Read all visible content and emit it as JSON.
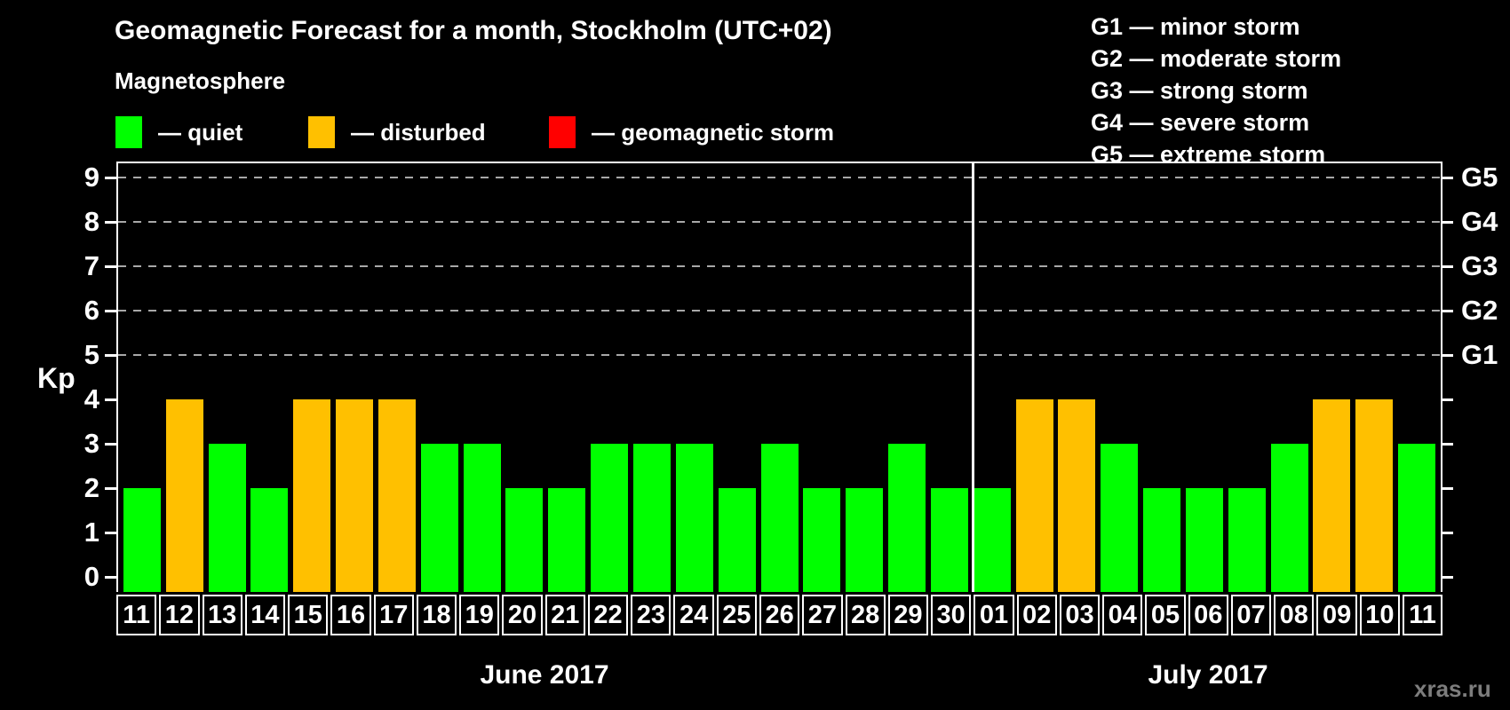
{
  "title": "Geomagnetic Forecast for a month, Stockholm (UTC+02)",
  "subtitle": "Magnetosphere",
  "status_legend": [
    {
      "name": "quiet",
      "label": "— quiet",
      "color": "#00ff00"
    },
    {
      "name": "disturbed",
      "label": "— disturbed",
      "color": "#ffc000"
    },
    {
      "name": "storm",
      "label": "— geomagnetic storm",
      "color": "#ff0000"
    }
  ],
  "g_scale_legend": [
    "G1 — minor storm",
    "G2 — moderate storm",
    "G3 — strong storm",
    "G4 — severe storm",
    "G5 — extreme storm"
  ],
  "watermark": "xras.ru",
  "colors": {
    "background": "#000000",
    "quiet": "#00ff00",
    "disturbed": "#ffc000",
    "storm": "#ff0000",
    "frame": "#ffffff",
    "gridline": "#a8a8a8",
    "watermark": "#7d7d7d"
  },
  "chart_data": {
    "type": "bar",
    "title": "Geomagnetic Forecast for a month, Stockholm (UTC+02)",
    "ylabel": "Kp",
    "ylim": [
      0,
      9
    ],
    "y_ticks": [
      0,
      1,
      2,
      3,
      4,
      5,
      6,
      7,
      8,
      9
    ],
    "gridlines_at": [
      5,
      6,
      7,
      8,
      9
    ],
    "grid_style": "dashed horizontal lines at G-storm levels only",
    "legend_position": "top-left",
    "right_axis_labels": [
      {
        "kp": 5,
        "label": "G1"
      },
      {
        "kp": 6,
        "label": "G2"
      },
      {
        "kp": 7,
        "label": "G3"
      },
      {
        "kp": 8,
        "label": "G4"
      },
      {
        "kp": 9,
        "label": "G5"
      }
    ],
    "categories": [
      "11",
      "12",
      "13",
      "14",
      "15",
      "16",
      "17",
      "18",
      "19",
      "20",
      "21",
      "22",
      "23",
      "24",
      "25",
      "26",
      "27",
      "28",
      "29",
      "30",
      "01",
      "02",
      "03",
      "04",
      "05",
      "06",
      "07",
      "08",
      "09",
      "10",
      "11"
    ],
    "values": [
      2,
      4,
      3,
      2,
      4,
      4,
      4,
      3,
      3,
      2,
      2,
      3,
      3,
      3,
      2,
      3,
      2,
      2,
      3,
      2,
      2,
      4,
      4,
      3,
      2,
      2,
      2,
      3,
      4,
      4,
      3
    ],
    "statuses": [
      "quiet",
      "disturbed",
      "quiet",
      "quiet",
      "disturbed",
      "disturbed",
      "disturbed",
      "quiet",
      "quiet",
      "quiet",
      "quiet",
      "quiet",
      "quiet",
      "quiet",
      "quiet",
      "quiet",
      "quiet",
      "quiet",
      "quiet",
      "quiet",
      "quiet",
      "disturbed",
      "disturbed",
      "quiet",
      "quiet",
      "quiet",
      "quiet",
      "quiet",
      "disturbed",
      "disturbed",
      "quiet"
    ],
    "months": [
      {
        "label": "June 2017",
        "days": [
          {
            "day": "11",
            "kp": 2,
            "status": "quiet"
          },
          {
            "day": "12",
            "kp": 4,
            "status": "disturbed"
          },
          {
            "day": "13",
            "kp": 3,
            "status": "quiet"
          },
          {
            "day": "14",
            "kp": 2,
            "status": "quiet"
          },
          {
            "day": "15",
            "kp": 4,
            "status": "disturbed"
          },
          {
            "day": "16",
            "kp": 4,
            "status": "disturbed"
          },
          {
            "day": "17",
            "kp": 4,
            "status": "disturbed"
          },
          {
            "day": "18",
            "kp": 3,
            "status": "quiet"
          },
          {
            "day": "19",
            "kp": 3,
            "status": "quiet"
          },
          {
            "day": "20",
            "kp": 2,
            "status": "quiet"
          },
          {
            "day": "21",
            "kp": 2,
            "status": "quiet"
          },
          {
            "day": "22",
            "kp": 3,
            "status": "quiet"
          },
          {
            "day": "23",
            "kp": 3,
            "status": "quiet"
          },
          {
            "day": "24",
            "kp": 3,
            "status": "quiet"
          },
          {
            "day": "25",
            "kp": 2,
            "status": "quiet"
          },
          {
            "day": "26",
            "kp": 3,
            "status": "quiet"
          },
          {
            "day": "27",
            "kp": 2,
            "status": "quiet"
          },
          {
            "day": "28",
            "kp": 2,
            "status": "quiet"
          },
          {
            "day": "29",
            "kp": 3,
            "status": "quiet"
          },
          {
            "day": "30",
            "kp": 2,
            "status": "quiet"
          }
        ]
      },
      {
        "label": "July 2017",
        "days": [
          {
            "day": "01",
            "kp": 2,
            "status": "quiet"
          },
          {
            "day": "02",
            "kp": 4,
            "status": "disturbed"
          },
          {
            "day": "03",
            "kp": 4,
            "status": "disturbed"
          },
          {
            "day": "04",
            "kp": 3,
            "status": "quiet"
          },
          {
            "day": "05",
            "kp": 2,
            "status": "quiet"
          },
          {
            "day": "06",
            "kp": 2,
            "status": "quiet"
          },
          {
            "day": "07",
            "kp": 2,
            "status": "quiet"
          },
          {
            "day": "08",
            "kp": 3,
            "status": "quiet"
          },
          {
            "day": "09",
            "kp": 4,
            "status": "disturbed"
          },
          {
            "day": "10",
            "kp": 4,
            "status": "disturbed"
          },
          {
            "day": "11",
            "kp": 3,
            "status": "quiet"
          }
        ]
      }
    ]
  }
}
